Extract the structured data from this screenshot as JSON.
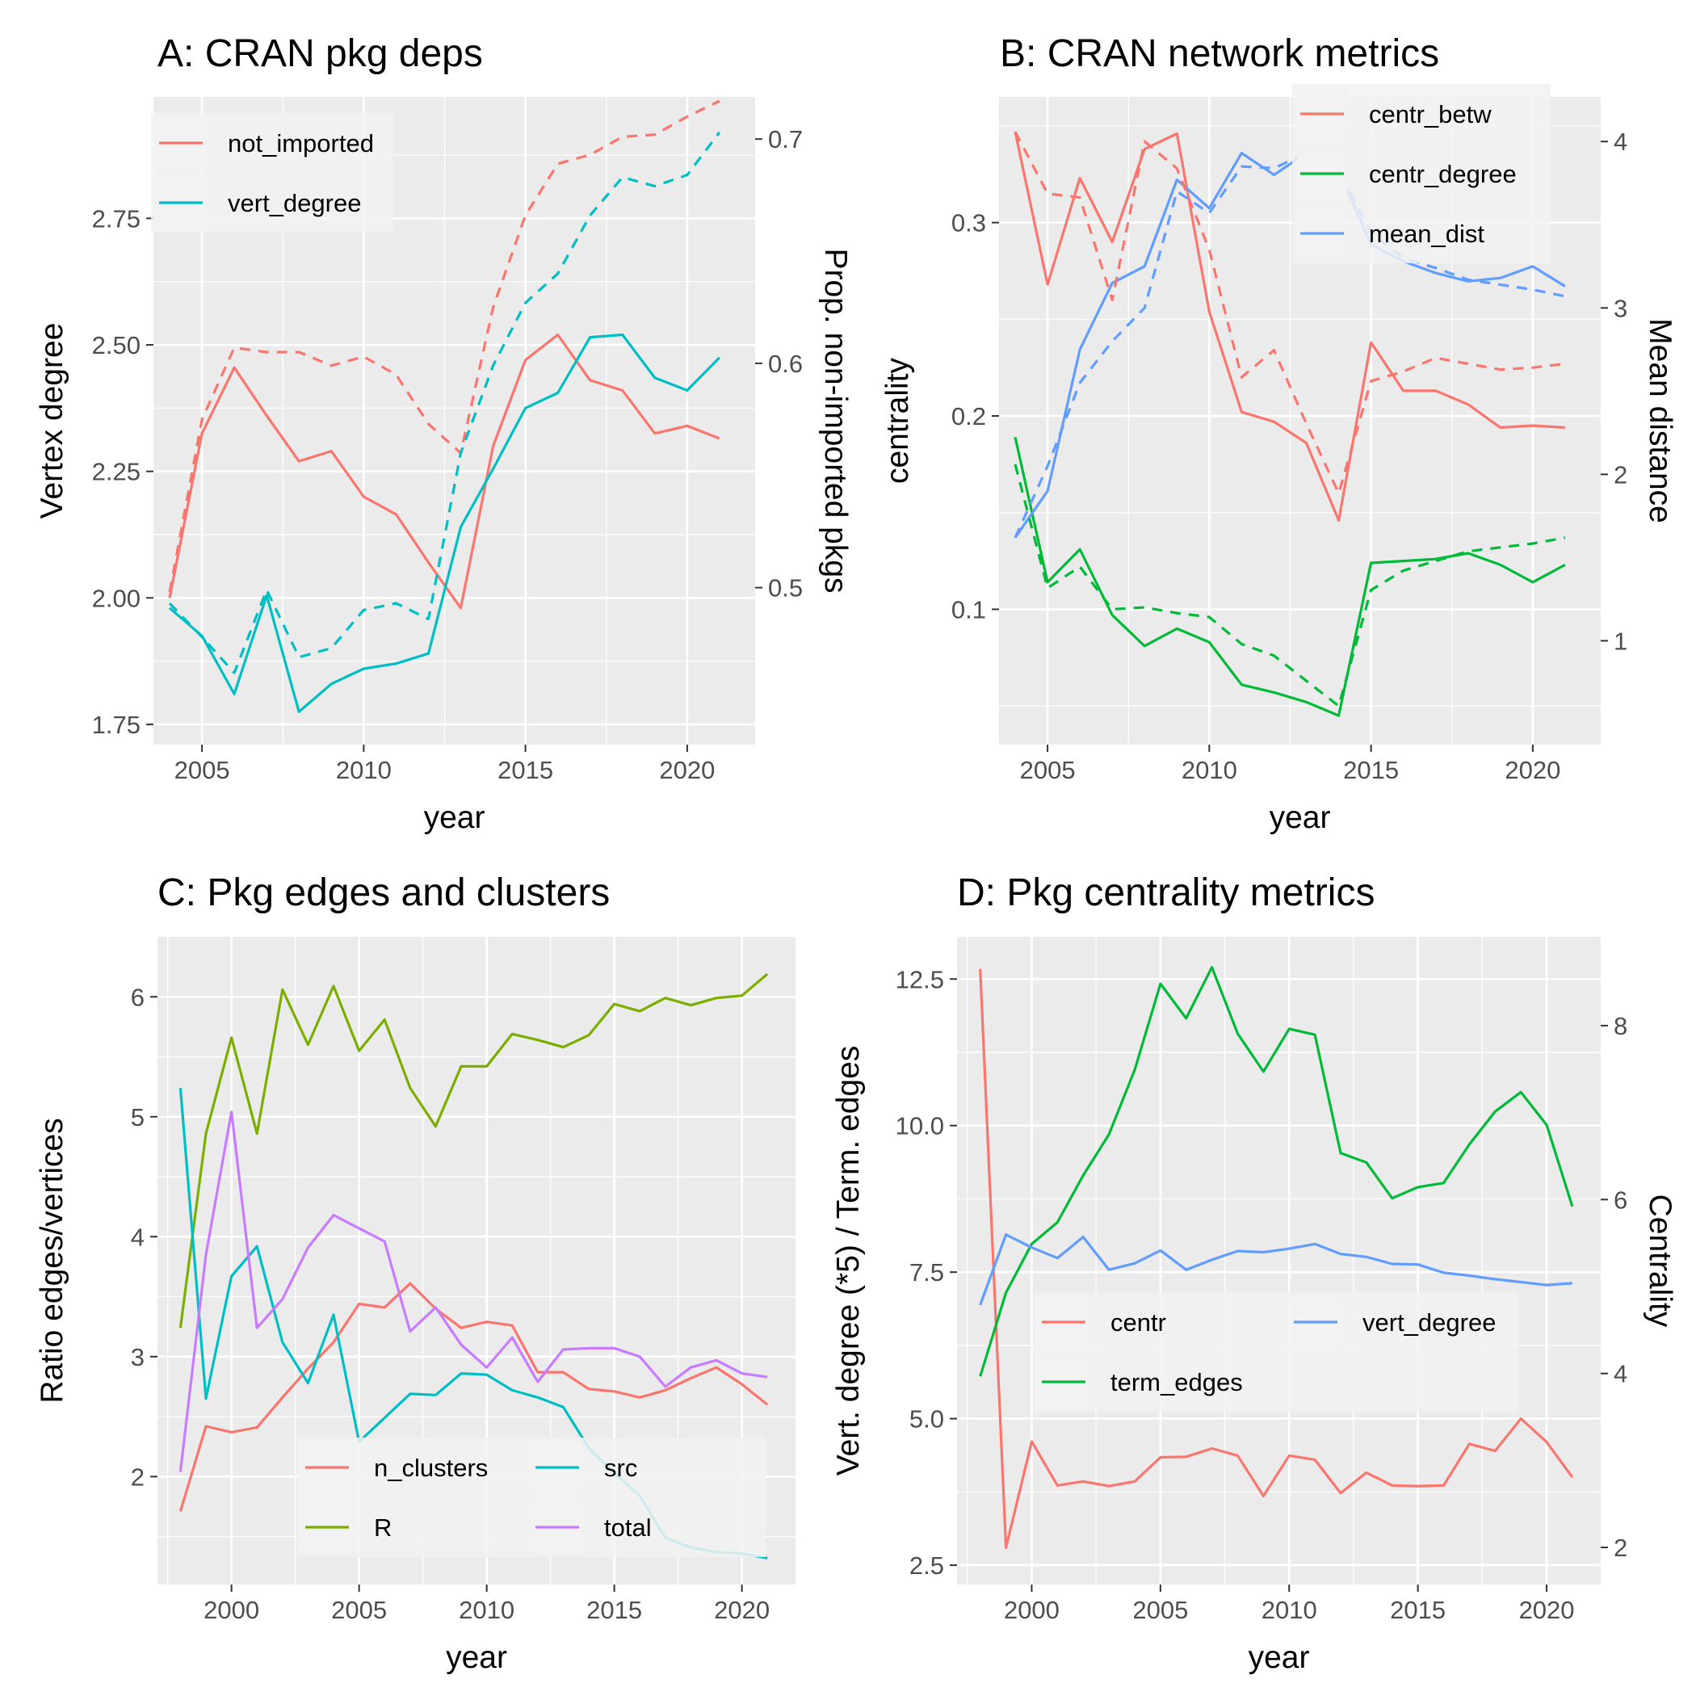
{
  "chart_data": [
    {
      "id": "A",
      "type": "line",
      "title": "A: CRAN pkg deps",
      "xlabel": "year",
      "ylabel": "Vertex degree",
      "y2label": "Prop. non-imported pkgs",
      "xlim": [
        2003.5,
        2022.1
      ],
      "ylim": [
        1.71,
        2.99
      ],
      "y2lim": [
        0.43,
        0.7188
      ],
      "xticks": [
        2005,
        2010,
        2015,
        2020
      ],
      "yticks": [
        1.75,
        2.0,
        2.25,
        2.5,
        2.75
      ],
      "ytick_labels": [
        "1.75",
        "2.00",
        "2.25",
        "2.50",
        "2.75"
      ],
      "y2ticks": [
        0.5,
        0.6,
        0.7
      ],
      "y2tick_labels": [
        "0.5",
        "0.6",
        "0.7"
      ],
      "legend": {
        "position": "top-left",
        "columns": 1
      },
      "x": [
        2004,
        2005,
        2006,
        2007,
        2008,
        2009,
        2010,
        2011,
        2012,
        2013,
        2014,
        2015,
        2016,
        2017,
        2018,
        2019,
        2020,
        2021
      ],
      "series": [
        {
          "name": "not_imported",
          "axis": "left",
          "dash": false,
          "color": "#F8766D",
          "values": [
            2.0,
            2.325,
            2.455,
            2.36,
            2.27,
            2.29,
            2.2,
            2.165,
            2.07,
            1.98,
            2.3,
            2.47,
            2.52,
            2.43,
            2.41,
            2.325,
            2.34,
            2.315
          ]
        },
        {
          "name": "vert_degree",
          "axis": "left",
          "dash": false,
          "color": "#00BFC4",
          "values": [
            1.98,
            1.925,
            1.81,
            2.005,
            1.775,
            1.83,
            1.86,
            1.87,
            1.89,
            2.14,
            2.255,
            2.375,
            2.405,
            2.515,
            2.52,
            2.435,
            2.41,
            2.475
          ]
        },
        {
          "name": "not_imported",
          "axis": "right",
          "dash": true,
          "color": "#F8766D",
          "values": [
            0.498,
            0.575,
            0.607,
            0.605,
            0.605,
            0.599,
            0.603,
            0.595,
            0.573,
            0.56,
            0.625,
            0.666,
            0.689,
            0.693,
            0.701,
            0.702,
            0.71,
            0.717
          ]
        },
        {
          "name": "vert_degree",
          "axis": "right",
          "dash": true,
          "color": "#00BFC4",
          "values": [
            0.493,
            0.478,
            0.462,
            0.499,
            0.469,
            0.473,
            0.49,
            0.493,
            0.486,
            0.56,
            0.599,
            0.627,
            0.64,
            0.666,
            0.683,
            0.679,
            0.684,
            0.703
          ]
        }
      ]
    },
    {
      "id": "B",
      "type": "line",
      "title": "B: CRAN network metrics",
      "xlabel": "year",
      "ylabel": "centrality",
      "y2label": "Mean distance",
      "xlim": [
        2003.5,
        2022.1
      ],
      "ylim": [
        0.03,
        0.365
      ],
      "y2lim": [
        0.376,
        4.268
      ],
      "xticks": [
        2005,
        2010,
        2015,
        2020
      ],
      "yticks": [
        0.1,
        0.2,
        0.3
      ],
      "ytick_labels": [
        "0.1",
        "0.2",
        "0.3"
      ],
      "y2ticks": [
        1,
        2,
        3,
        4
      ],
      "y2tick_labels": [
        "1",
        "2",
        "3",
        "4"
      ],
      "legend": {
        "position": "top-right",
        "columns": 1
      },
      "x": [
        2004,
        2005,
        2006,
        2007,
        2008,
        2009,
        2010,
        2011,
        2012,
        2013,
        2014,
        2015,
        2016,
        2017,
        2018,
        2019,
        2020,
        2021
      ],
      "series": [
        {
          "name": "centr_betw",
          "axis": "left",
          "dash": false,
          "color": "#F8766D",
          "values": [
            0.347,
            0.268,
            0.323,
            0.29,
            0.338,
            0.346,
            0.254,
            0.202,
            0.197,
            0.186,
            0.146,
            0.238,
            0.213,
            0.213,
            0.206,
            0.194,
            0.195,
            0.194
          ]
        },
        {
          "name": "centr_degree",
          "axis": "left",
          "dash": false,
          "color": "#00BA38",
          "values": [
            0.189,
            0.114,
            0.131,
            0.097,
            0.081,
            0.09,
            0.083,
            0.061,
            0.057,
            0.052,
            0.045,
            0.124,
            0.125,
            0.126,
            0.129,
            0.123,
            0.114,
            0.123
          ]
        },
        {
          "name": "mean_dist",
          "axis": "right",
          "dash": false,
          "color": "#619CFF",
          "values": [
            1.62,
            1.9,
            2.75,
            3.15,
            3.25,
            3.77,
            3.6,
            3.93,
            3.8,
            3.93,
            3.83,
            3.38,
            3.28,
            3.21,
            3.16,
            3.18,
            3.25,
            3.13
          ]
        },
        {
          "name": "centr_betw",
          "axis": "left",
          "dash": true,
          "color": "#F8766D",
          "values": [
            0.347,
            0.315,
            0.313,
            0.26,
            0.342,
            0.328,
            0.286,
            0.22,
            0.234,
            0.196,
            0.16,
            0.218,
            0.223,
            0.23,
            0.227,
            0.224,
            0.225,
            0.227
          ]
        },
        {
          "name": "centr_degree",
          "axis": "left",
          "dash": true,
          "color": "#00BA38",
          "values": [
            0.175,
            0.111,
            0.122,
            0.1,
            0.101,
            0.098,
            0.096,
            0.082,
            0.076,
            0.063,
            0.05,
            0.11,
            0.12,
            0.125,
            0.13,
            0.132,
            0.134,
            0.137
          ]
        },
        {
          "name": "mean_dist",
          "axis": "right",
          "dash": true,
          "color": "#619CFF",
          "values": [
            1.62,
            2.05,
            2.55,
            2.8,
            3.0,
            3.7,
            3.57,
            3.85,
            3.84,
            3.93,
            3.83,
            3.45,
            3.3,
            3.24,
            3.17,
            3.14,
            3.11,
            3.07
          ]
        }
      ]
    },
    {
      "id": "C",
      "type": "line",
      "title": "C: Pkg edges and clusters",
      "xlabel": "year",
      "ylabel": "Ratio edges/vertices",
      "xlim": [
        1997.1,
        2022.1
      ],
      "ylim": [
        1.1,
        6.5
      ],
      "xticks": [
        2000,
        2005,
        2010,
        2015,
        2020
      ],
      "yticks": [
        2,
        3,
        4,
        5,
        6
      ],
      "ytick_labels": [
        "2",
        "3",
        "4",
        "5",
        "6"
      ],
      "legend": {
        "position": "bottom-center",
        "columns": 2
      },
      "x": [
        1998,
        1999,
        2000,
        2001,
        2002,
        2003,
        2004,
        2005,
        2006,
        2007,
        2008,
        2009,
        2010,
        2011,
        2012,
        2013,
        2014,
        2015,
        2016,
        2017,
        2018,
        2019,
        2020,
        2021
      ],
      "series": [
        {
          "name": "n_clusters",
          "axis": "left",
          "dash": false,
          "color": "#F8766D",
          "values": [
            1.71,
            2.42,
            2.37,
            2.41,
            2.66,
            2.9,
            3.12,
            3.44,
            3.41,
            3.61,
            3.4,
            3.24,
            3.29,
            3.26,
            2.87,
            2.87,
            2.73,
            2.71,
            2.66,
            2.72,
            2.82,
            2.91,
            2.77,
            2.6
          ]
        },
        {
          "name": "R",
          "axis": "left",
          "dash": false,
          "color": "#7CAE00",
          "values": [
            3.24,
            4.86,
            5.66,
            4.86,
            6.06,
            5.6,
            6.09,
            5.55,
            5.81,
            5.24,
            4.92,
            5.42,
            5.42,
            5.69,
            5.64,
            5.58,
            5.68,
            5.94,
            5.88,
            5.99,
            5.93,
            5.99,
            6.01,
            6.19
          ]
        },
        {
          "name": "src",
          "axis": "left",
          "dash": false,
          "color": "#00BFC4",
          "values": [
            5.24,
            2.65,
            3.67,
            3.92,
            3.12,
            2.78,
            3.35,
            2.29,
            2.49,
            2.69,
            2.68,
            2.86,
            2.85,
            2.72,
            2.66,
            2.58,
            2.24,
            2.03,
            1.84,
            1.49,
            1.41,
            1.37,
            1.36,
            1.32
          ]
        },
        {
          "name": "total",
          "axis": "left",
          "dash": false,
          "color": "#C77CFF",
          "values": [
            2.04,
            3.85,
            5.04,
            3.24,
            3.48,
            3.91,
            4.18,
            4.07,
            3.96,
            3.21,
            3.41,
            3.1,
            2.91,
            3.16,
            2.79,
            3.06,
            3.07,
            3.07,
            3.0,
            2.75,
            2.91,
            2.97,
            2.86,
            2.83
          ]
        }
      ]
    },
    {
      "id": "D",
      "type": "line",
      "title": "D: Pkg centrality metrics",
      "xlabel": "year",
      "ylabel": "Vert. degree (*5) / Term. edges",
      "y2label": "Centrality",
      "xlim": [
        1997.1,
        2022.1
      ],
      "ylim": [
        2.17,
        13.22
      ],
      "y2lim": [
        1.573,
        9.021
      ],
      "xticks": [
        2000,
        2005,
        2010,
        2015,
        2020
      ],
      "yticks": [
        2.5,
        5.0,
        7.5,
        10.0,
        12.5
      ],
      "ytick_labels": [
        "2.5",
        "5.0",
        "7.5",
        "10.0",
        "12.5"
      ],
      "y2ticks": [
        2,
        4,
        6,
        8
      ],
      "y2tick_labels": [
        "2",
        "4",
        "6",
        "8"
      ],
      "legend": {
        "position": "center-left",
        "columns": 2
      },
      "x": [
        1998,
        1999,
        2000,
        2001,
        2002,
        2003,
        2004,
        2005,
        2006,
        2007,
        2008,
        2009,
        2010,
        2011,
        2012,
        2013,
        2014,
        2015,
        2016,
        2017,
        2018,
        2019,
        2020,
        2021
      ],
      "series": [
        {
          "name": "centr",
          "axis": "left",
          "dash": false,
          "color": "#F8766D",
          "values": [
            12.67,
            2.8,
            4.61,
            3.86,
            3.93,
            3.85,
            3.93,
            4.34,
            4.35,
            4.49,
            4.37,
            3.68,
            4.37,
            4.3,
            3.73,
            4.08,
            3.86,
            3.85,
            3.86,
            4.57,
            4.45,
            5.0,
            4.6,
            4.0
          ]
        },
        {
          "name": "term_edges",
          "axis": "left",
          "dash": false,
          "color": "#00BA38",
          "values": [
            5.72,
            7.15,
            7.98,
            8.35,
            9.15,
            9.85,
            10.95,
            12.42,
            11.83,
            12.7,
            11.57,
            10.92,
            11.65,
            11.55,
            9.53,
            9.37,
            8.76,
            8.95,
            9.02,
            9.68,
            10.24,
            10.57,
            10.01,
            8.62
          ]
        },
        {
          "name": "vert_degree",
          "axis": "left",
          "dash": false,
          "color": "#619CFF",
          "values": [
            6.94,
            8.14,
            7.92,
            7.74,
            8.1,
            7.54,
            7.65,
            7.87,
            7.54,
            7.71,
            7.86,
            7.84,
            7.9,
            7.98,
            7.81,
            7.76,
            7.64,
            7.63,
            7.49,
            7.44,
            7.38,
            7.33,
            7.28,
            7.31
          ]
        }
      ]
    }
  ]
}
